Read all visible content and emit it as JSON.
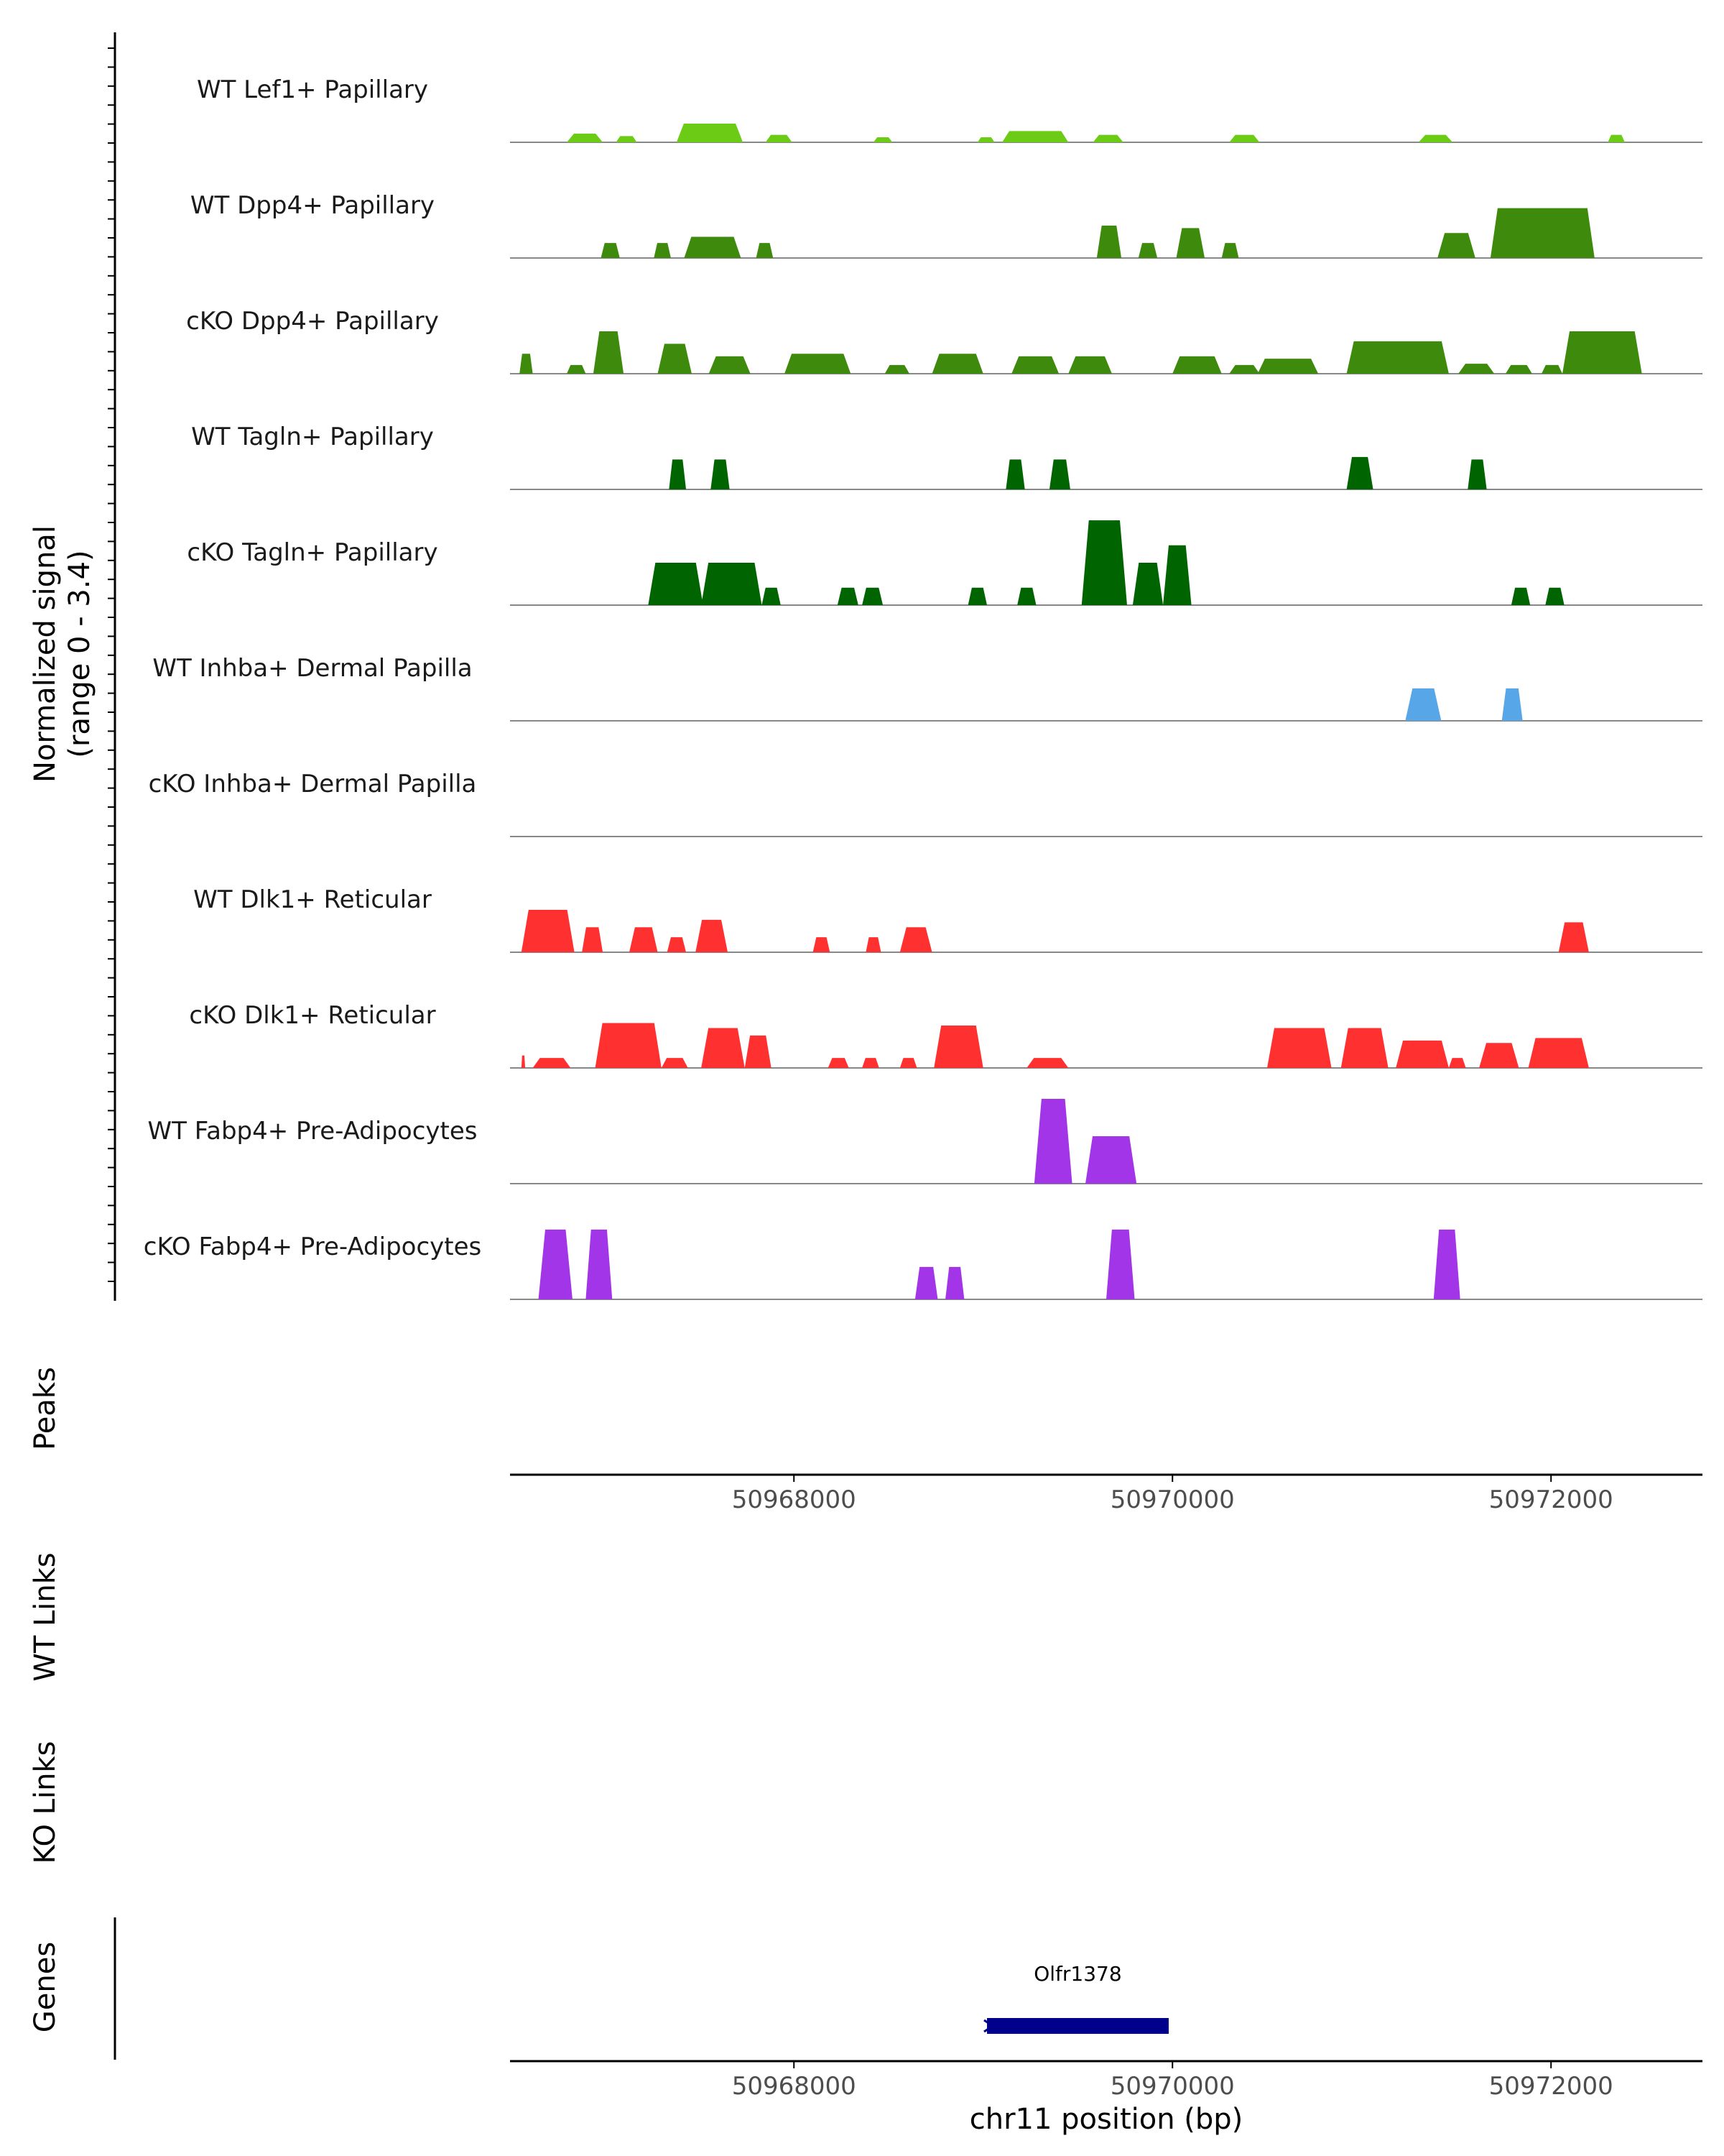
{
  "chart_data": {
    "type": "area",
    "subtype": "genome-coverage-tracks",
    "region": {
      "chromosome": "chr11",
      "start": 50966500,
      "end": 50972800
    },
    "coverage": {
      "ylabel_line1": "Normalized signal",
      "ylabel_line2": "(range 0 - 3.4)",
      "ylim": [
        0,
        3.4
      ],
      "tracks": [
        {
          "label": "WT Lef1+ Papillary",
          "color": "#6CCB14",
          "peaks": [
            [
              50966800,
              50966990,
              0.35
            ],
            [
              50967060,
              50967170,
              0.25
            ],
            [
              50967380,
              50967730,
              0.75
            ],
            [
              50967850,
              50967990,
              0.3
            ],
            [
              50968420,
              50968520,
              0.2
            ],
            [
              50968970,
              50969060,
              0.2
            ],
            [
              50969100,
              50969450,
              0.45
            ],
            [
              50969580,
              50969740,
              0.3
            ],
            [
              50970300,
              50970460,
              0.3
            ],
            [
              50971300,
              50971480,
              0.3
            ],
            [
              50972300,
              50972390,
              0.3
            ]
          ]
        },
        {
          "label": "WT Dpp4+ Papillary",
          "color": "#3E8A0C",
          "peaks": [
            [
              50966980,
              50967080,
              0.6
            ],
            [
              50967260,
              50967350,
              0.6
            ],
            [
              50967420,
              50967720,
              0.85
            ],
            [
              50967800,
              50967890,
              0.6
            ],
            [
              50969600,
              50969730,
              1.3
            ],
            [
              50969820,
              50969920,
              0.6
            ],
            [
              50970020,
              50970170,
              1.2
            ],
            [
              50970260,
              50970350,
              0.6
            ],
            [
              50971400,
              50971600,
              1.0
            ],
            [
              50971680,
              50972230,
              2.0
            ]
          ]
        },
        {
          "label": "cKO Dpp4+ Papillary",
          "color": "#3E8A0C",
          "peaks": [
            [
              50966550,
              50966620,
              0.8
            ],
            [
              50966800,
              50966900,
              0.35
            ],
            [
              50966940,
              50967100,
              1.7
            ],
            [
              50967280,
              50967460,
              1.2
            ],
            [
              50967550,
              50967770,
              0.7
            ],
            [
              50967950,
              50968300,
              0.8
            ],
            [
              50968480,
              50968610,
              0.35
            ],
            [
              50968730,
              50969000,
              0.8
            ],
            [
              50969150,
              50969400,
              0.7
            ],
            [
              50969450,
              50969680,
              0.7
            ],
            [
              50970000,
              50970260,
              0.7
            ],
            [
              50970300,
              50970460,
              0.35
            ],
            [
              50970450,
              50970770,
              0.6
            ],
            [
              50970920,
              50971460,
              1.3
            ],
            [
              50971510,
              50971700,
              0.4
            ],
            [
              50971760,
              50971900,
              0.35
            ],
            [
              50971950,
              50972060,
              0.35
            ],
            [
              50972060,
              50972480,
              1.7
            ]
          ]
        },
        {
          "label": "WT Tagln+ Papillary",
          "color": "#006400",
          "peaks": [
            [
              50967340,
              50967430,
              1.2
            ],
            [
              50967560,
              50967660,
              1.2
            ],
            [
              50969120,
              50969220,
              1.2
            ],
            [
              50969350,
              50969460,
              1.2
            ],
            [
              50970920,
              50971060,
              1.3
            ],
            [
              50971560,
              50971660,
              1.2
            ]
          ]
        },
        {
          "label": "cKO Tagln+ Papillary",
          "color": "#006400",
          "peaks": [
            [
              50967230,
              50967520,
              1.7
            ],
            [
              50967510,
              50967830,
              1.7
            ],
            [
              50967830,
              50967930,
              0.7
            ],
            [
              50968230,
              50968340,
              0.7
            ],
            [
              50968360,
              50968470,
              0.7
            ],
            [
              50968920,
              50969020,
              0.7
            ],
            [
              50969180,
              50969280,
              0.7
            ],
            [
              50969520,
              50969760,
              3.4
            ],
            [
              50969790,
              50969950,
              1.7
            ],
            [
              50969950,
              50970100,
              2.4
            ],
            [
              50971790,
              50971890,
              0.7
            ],
            [
              50971970,
              50972070,
              0.7
            ]
          ]
        },
        {
          "label": "WT Inhba+ Dermal Papilla",
          "color": "#56A6E8",
          "peaks": [
            [
              50971230,
              50971420,
              1.3
            ],
            [
              50971740,
              50971850,
              1.3
            ]
          ]
        },
        {
          "label": "cKO Inhba+ Dermal Papilla",
          "color": "#56A6E8",
          "peaks": []
        },
        {
          "label": "WT Dlk1+ Reticular",
          "color": "#FF3030",
          "peaks": [
            [
              50966560,
              50966840,
              1.7
            ],
            [
              50966880,
              50966990,
              1.0
            ],
            [
              50967130,
              50967280,
              1.0
            ],
            [
              50967330,
              50967430,
              0.6
            ],
            [
              50967480,
              50967650,
              1.3
            ],
            [
              50968100,
              50968190,
              0.6
            ],
            [
              50968380,
              50968460,
              0.6
            ],
            [
              50968560,
              50968730,
              1.0
            ],
            [
              50972040,
              50972200,
              1.2
            ]
          ]
        },
        {
          "label": "cKO Dlk1+ Reticular",
          "color": "#FF3030",
          "peaks": [
            [
              50966560,
              50966580,
              0.5
            ],
            [
              50966620,
              50966820,
              0.4
            ],
            [
              50966950,
              50967300,
              1.8
            ],
            [
              50967300,
              50967440,
              0.4
            ],
            [
              50967510,
              50967740,
              1.6
            ],
            [
              50967740,
              50967880,
              1.3
            ],
            [
              50968180,
              50968290,
              0.4
            ],
            [
              50968360,
              50968450,
              0.4
            ],
            [
              50968560,
              50968650,
              0.4
            ],
            [
              50968740,
              50969000,
              1.7
            ],
            [
              50969230,
              50969450,
              0.4
            ],
            [
              50970500,
              50970840,
              1.6
            ],
            [
              50970890,
              50971140,
              1.6
            ],
            [
              50971180,
              50971460,
              1.1
            ],
            [
              50971460,
              50971550,
              0.4
            ],
            [
              50971620,
              50971830,
              1.0
            ],
            [
              50971880,
              50972200,
              1.2
            ]
          ]
        },
        {
          "label": "WT Fabp4+ Pre-Adipocytes",
          "color": "#A235E8",
          "peaks": [
            [
              50969270,
              50969470,
              3.4
            ],
            [
              50969540,
              50969810,
              1.9
            ]
          ]
        },
        {
          "label": "cKO Fabp4+ Pre-Adipocytes",
          "color": "#A235E8",
          "peaks": [
            [
              50966650,
              50966830,
              2.8
            ],
            [
              50966900,
              50967040,
              2.8
            ],
            [
              50968640,
              50968760,
              1.3
            ],
            [
              50968800,
              50968900,
              1.3
            ],
            [
              50969650,
              50969800,
              2.8
            ],
            [
              50971380,
              50971520,
              2.8
            ]
          ]
        }
      ]
    },
    "peaks_track": {
      "label": "Peaks",
      "items": []
    },
    "links_tracks": [
      {
        "label": "WT Links",
        "items": []
      },
      {
        "label": "KO Links",
        "items": []
      }
    ],
    "genes_track": {
      "label": "Genes",
      "genes": [
        {
          "name": "Olfr1378",
          "start": 50969020,
          "end": 50969980,
          "strand": "-"
        }
      ]
    },
    "x_axis": {
      "label": "chr11 position (bp)",
      "ticks": [
        50968000,
        50970000,
        50972000
      ]
    }
  }
}
